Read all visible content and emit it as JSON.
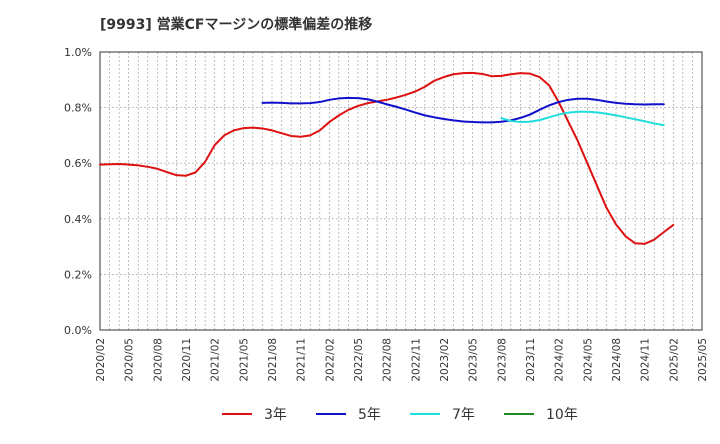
{
  "chart_data": {
    "type": "line",
    "title": "[9993]  営業CFマージンの標準偏差の推移",
    "xlabel": "",
    "ylabel": "",
    "ylim": [
      0.0,
      1.0
    ],
    "yticks": [
      "0.0%",
      "0.2%",
      "0.4%",
      "0.6%",
      "0.8%",
      "1.0%"
    ],
    "ytick_values": [
      0.0,
      0.2,
      0.4,
      0.6,
      0.8,
      1.0
    ],
    "xticks": [
      "2020/02",
      "2020/05",
      "2020/08",
      "2020/11",
      "2021/02",
      "2021/05",
      "2021/08",
      "2021/11",
      "2022/02",
      "2022/05",
      "2022/08",
      "2022/11",
      "2023/02",
      "2023/05",
      "2023/08",
      "2023/11",
      "2024/02",
      "2024/05",
      "2024/08",
      "2024/11",
      "2025/02",
      "2025/05"
    ],
    "grid": true,
    "legend_position": "bottom",
    "series": [
      {
        "name": "3年",
        "color": "#dd1111",
        "points": [
          [
            "2020/02",
            0.595
          ],
          [
            "2020/03",
            0.596
          ],
          [
            "2020/04",
            0.597
          ],
          [
            "2020/05",
            0.595
          ],
          [
            "2020/06",
            0.592
          ],
          [
            "2020/07",
            0.587
          ],
          [
            "2020/08",
            0.58
          ],
          [
            "2020/09",
            0.568
          ],
          [
            "2020/10",
            0.557
          ],
          [
            "2020/11",
            0.555
          ],
          [
            "2020/12",
            0.567
          ],
          [
            "2021/01",
            0.605
          ],
          [
            "2021/02",
            0.665
          ],
          [
            "2021/03",
            0.7
          ],
          [
            "2021/04",
            0.718
          ],
          [
            "2021/05",
            0.726
          ],
          [
            "2021/06",
            0.728
          ],
          [
            "2021/07",
            0.725
          ],
          [
            "2021/08",
            0.718
          ],
          [
            "2021/09",
            0.708
          ],
          [
            "2021/10",
            0.698
          ],
          [
            "2021/11",
            0.695
          ],
          [
            "2021/12",
            0.7
          ],
          [
            "2022/01",
            0.718
          ],
          [
            "2022/02",
            0.748
          ],
          [
            "2022/03",
            0.772
          ],
          [
            "2022/04",
            0.792
          ],
          [
            "2022/05",
            0.806
          ],
          [
            "2022/06",
            0.816
          ],
          [
            "2022/07",
            0.822
          ],
          [
            "2022/08",
            0.828
          ],
          [
            "2022/09",
            0.836
          ],
          [
            "2022/10",
            0.846
          ],
          [
            "2022/11",
            0.858
          ],
          [
            "2022/12",
            0.875
          ],
          [
            "2023/01",
            0.897
          ],
          [
            "2023/02",
            0.91
          ],
          [
            "2023/03",
            0.92
          ],
          [
            "2023/04",
            0.924
          ],
          [
            "2023/05",
            0.925
          ],
          [
            "2023/06",
            0.921
          ],
          [
            "2023/07",
            0.913
          ],
          [
            "2023/08",
            0.914
          ],
          [
            "2023/09",
            0.92
          ],
          [
            "2023/10",
            0.924
          ],
          [
            "2023/11",
            0.922
          ],
          [
            "2023/12",
            0.91
          ],
          [
            "2024/01",
            0.88
          ],
          [
            "2024/02",
            0.82
          ],
          [
            "2024/03",
            0.75
          ],
          [
            "2024/04",
            0.68
          ],
          [
            "2024/05",
            0.6
          ],
          [
            "2024/06",
            0.52
          ],
          [
            "2024/07",
            0.44
          ],
          [
            "2024/08",
            0.38
          ],
          [
            "2024/09",
            0.337
          ],
          [
            "2024/10",
            0.312
          ],
          [
            "2024/11",
            0.31
          ],
          [
            "2024/12",
            0.325
          ],
          [
            "2025/01",
            0.352
          ],
          [
            "2025/02",
            0.378
          ]
        ]
      },
      {
        "name": "5年",
        "color": "#1111cc",
        "points": [
          [
            "2021/07",
            0.817
          ],
          [
            "2021/08",
            0.818
          ],
          [
            "2021/09",
            0.817
          ],
          [
            "2021/10",
            0.815
          ],
          [
            "2021/11",
            0.815
          ],
          [
            "2021/12",
            0.816
          ],
          [
            "2022/01",
            0.82
          ],
          [
            "2022/02",
            0.828
          ],
          [
            "2022/03",
            0.833
          ],
          [
            "2022/04",
            0.835
          ],
          [
            "2022/05",
            0.834
          ],
          [
            "2022/06",
            0.83
          ],
          [
            "2022/07",
            0.822
          ],
          [
            "2022/08",
            0.812
          ],
          [
            "2022/09",
            0.803
          ],
          [
            "2022/10",
            0.793
          ],
          [
            "2022/11",
            0.782
          ],
          [
            "2022/12",
            0.772
          ],
          [
            "2023/01",
            0.765
          ],
          [
            "2023/02",
            0.759
          ],
          [
            "2023/03",
            0.754
          ],
          [
            "2023/04",
            0.75
          ],
          [
            "2023/05",
            0.748
          ],
          [
            "2023/06",
            0.747
          ],
          [
            "2023/07",
            0.747
          ],
          [
            "2023/08",
            0.749
          ],
          [
            "2023/09",
            0.754
          ],
          [
            "2023/10",
            0.763
          ],
          [
            "2023/11",
            0.775
          ],
          [
            "2023/12",
            0.792
          ],
          [
            "2024/01",
            0.808
          ],
          [
            "2024/02",
            0.82
          ],
          [
            "2024/03",
            0.828
          ],
          [
            "2024/04",
            0.832
          ],
          [
            "2024/05",
            0.832
          ],
          [
            "2024/06",
            0.828
          ],
          [
            "2024/07",
            0.822
          ],
          [
            "2024/08",
            0.817
          ],
          [
            "2024/09",
            0.814
          ],
          [
            "2024/10",
            0.812
          ],
          [
            "2024/11",
            0.811
          ],
          [
            "2024/12",
            0.812
          ],
          [
            "2025/01",
            0.812
          ]
        ]
      },
      {
        "name": "7年",
        "color": "#22dddd",
        "points": [
          [
            "2023/08",
            0.762
          ],
          [
            "2023/09",
            0.752
          ],
          [
            "2023/10",
            0.748
          ],
          [
            "2023/11",
            0.749
          ],
          [
            "2023/12",
            0.755
          ],
          [
            "2024/01",
            0.765
          ],
          [
            "2024/02",
            0.775
          ],
          [
            "2024/03",
            0.782
          ],
          [
            "2024/04",
            0.785
          ],
          [
            "2024/05",
            0.785
          ],
          [
            "2024/06",
            0.783
          ],
          [
            "2024/07",
            0.778
          ],
          [
            "2024/08",
            0.772
          ],
          [
            "2024/09",
            0.765
          ],
          [
            "2024/10",
            0.758
          ],
          [
            "2024/11",
            0.751
          ],
          [
            "2024/12",
            0.743
          ],
          [
            "2025/01",
            0.737
          ]
        ]
      },
      {
        "name": "10年",
        "color": "#228822",
        "points": []
      }
    ]
  }
}
